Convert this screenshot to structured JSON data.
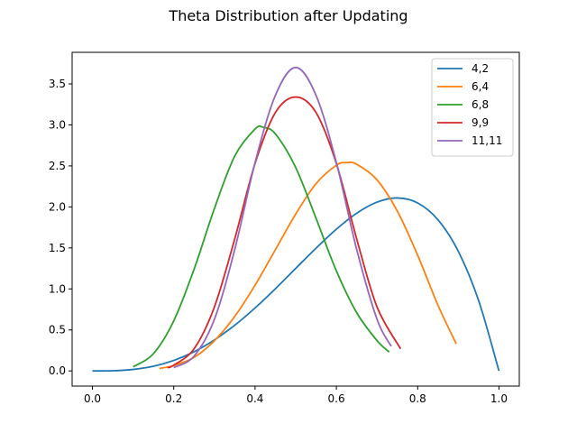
{
  "chart_data": {
    "type": "line",
    "title": "Theta Distribution after Updating",
    "xlabel": "",
    "ylabel": "",
    "xlim": [
      -0.05,
      1.05
    ],
    "ylim": [
      -0.185,
      3.885
    ],
    "xticks": [
      0.0,
      0.2,
      0.4,
      0.6,
      0.8,
      1.0
    ],
    "xtick_labels": [
      "0.0",
      "0.2",
      "0.4",
      "0.6",
      "0.8",
      "1.0"
    ],
    "yticks": [
      0.0,
      0.5,
      1.0,
      1.5,
      2.0,
      2.5,
      3.0,
      3.5
    ],
    "ytick_labels": [
      "0.0",
      "0.5",
      "1.0",
      "1.5",
      "2.0",
      "2.5",
      "3.0",
      "3.5"
    ],
    "grid": false,
    "legend_position": "top-right",
    "series": [
      {
        "name": "4,2",
        "color": "#1f77b4",
        "x": [
          0.0,
          0.05,
          0.1,
          0.15,
          0.2,
          0.25,
          0.3,
          0.35,
          0.4,
          0.45,
          0.5,
          0.55,
          0.6,
          0.65,
          0.7,
          0.75,
          0.8,
          0.85,
          0.9,
          0.95,
          1.0
        ],
        "y": [
          0.0,
          0.002,
          0.018,
          0.057,
          0.128,
          0.234,
          0.378,
          0.557,
          0.768,
          1.002,
          1.25,
          1.497,
          1.728,
          1.923,
          2.058,
          2.109,
          2.048,
          1.842,
          1.458,
          0.857,
          0.0
        ]
      },
      {
        "name": "6,4",
        "color": "#ff7f0e",
        "x": [
          0.165,
          0.2,
          0.25,
          0.3,
          0.35,
          0.4,
          0.45,
          0.5,
          0.55,
          0.6,
          0.625,
          0.65,
          0.7,
          0.75,
          0.8,
          0.85,
          0.895
        ],
        "y": [
          0.03,
          0.066,
          0.165,
          0.368,
          0.665,
          1.045,
          1.478,
          1.913,
          2.284,
          2.508,
          2.54,
          2.52,
          2.33,
          1.948,
          1.41,
          0.8,
          0.33
        ]
      },
      {
        "name": "6,8",
        "color": "#2ca02c",
        "x": [
          0.1,
          0.15,
          0.2,
          0.25,
          0.3,
          0.35,
          0.4,
          0.42,
          0.45,
          0.5,
          0.55,
          0.6,
          0.65,
          0.7,
          0.73
        ],
        "y": [
          0.05,
          0.21,
          0.61,
          1.24,
          1.98,
          2.62,
          2.95,
          2.97,
          2.89,
          2.48,
          1.86,
          1.22,
          0.71,
          0.37,
          0.23
        ]
      },
      {
        "name": "9,9",
        "color": "#d62728",
        "x": [
          0.185,
          0.2,
          0.25,
          0.3,
          0.35,
          0.4,
          0.45,
          0.5,
          0.55,
          0.6,
          0.65,
          0.7,
          0.758
        ],
        "y": [
          0.04,
          0.07,
          0.27,
          0.78,
          1.61,
          2.53,
          3.15,
          3.34,
          3.15,
          2.53,
          1.61,
          0.78,
          0.27
        ]
      },
      {
        "name": "11,11",
        "color": "#9467bd",
        "x": [
          0.2,
          0.25,
          0.3,
          0.35,
          0.4,
          0.45,
          0.5,
          0.55,
          0.6,
          0.65,
          0.7,
          0.735
        ],
        "y": [
          0.04,
          0.18,
          0.63,
          1.48,
          2.54,
          3.36,
          3.7,
          3.36,
          2.54,
          1.48,
          0.63,
          0.3
        ]
      }
    ]
  }
}
